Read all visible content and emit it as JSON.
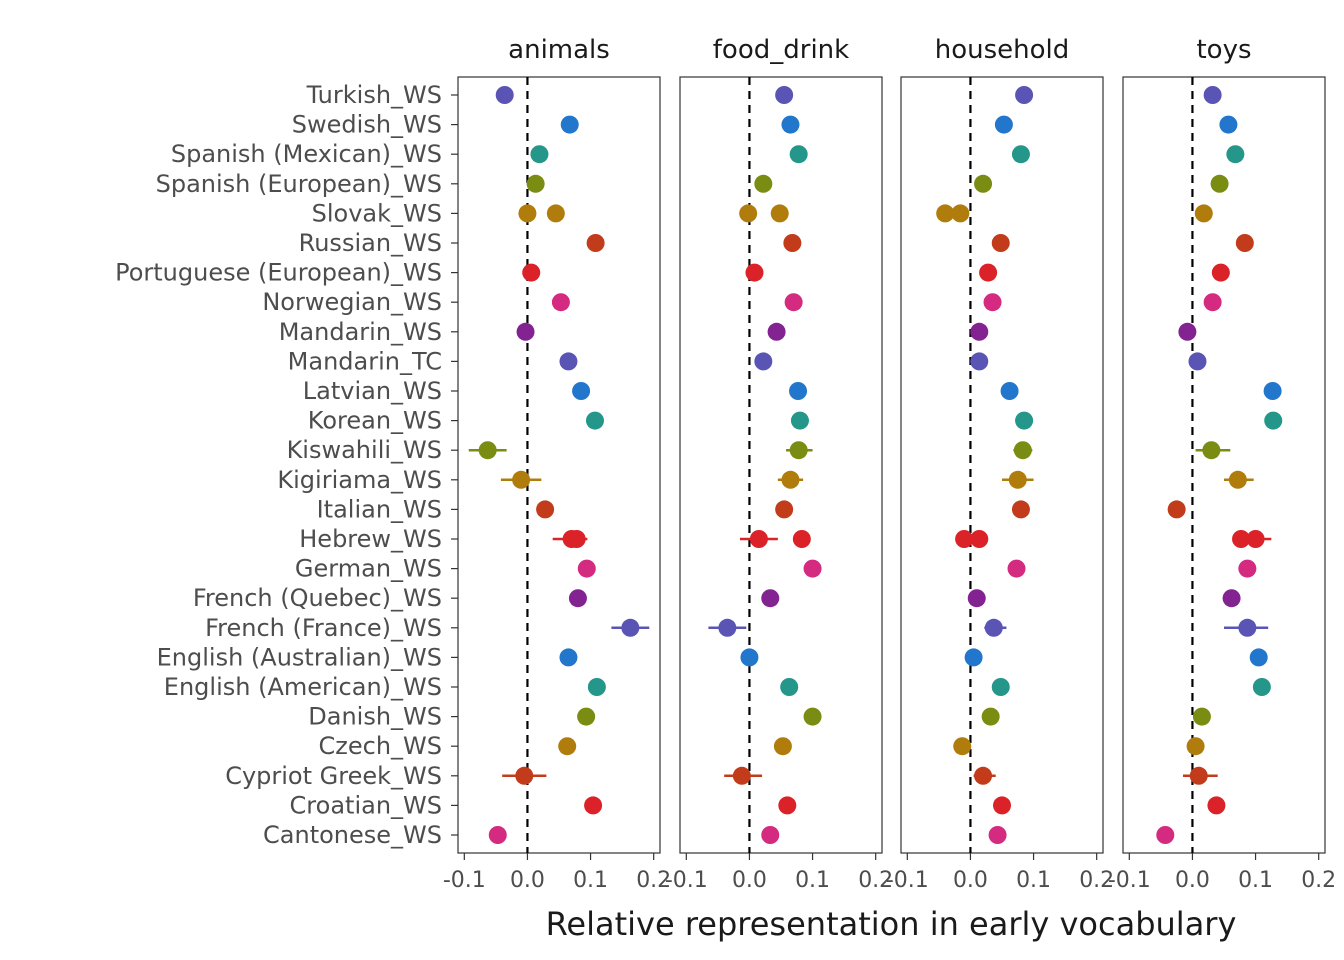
{
  "chart_data": {
    "type": "scatter",
    "xlabel": "Relative representation in early vocabulary",
    "ylabel": "",
    "xlim": [
      -0.11,
      0.21
    ],
    "xticks": [
      -0.1,
      0.0,
      0.1,
      0.2
    ],
    "xtick_labels": [
      "-0.1",
      "0.0",
      "0.1",
      "0.2"
    ],
    "grid": false,
    "legend": "none",
    "panels": [
      "animals",
      "food_drink",
      "household",
      "toys"
    ],
    "languages": [
      "Turkish_WS",
      "Swedish_WS",
      "Spanish (Mexican)_WS",
      "Spanish (European)_WS",
      "Slovak_WS",
      "Russian_WS",
      "Portuguese (European)_WS",
      "Norwegian_WS",
      "Mandarin_WS",
      "Mandarin_TC",
      "Latvian_WS",
      "Korean_WS",
      "Kiswahili_WS",
      "Kigiriama_WS",
      "Italian_WS",
      "Hebrew_WS",
      "German_WS",
      "French (Quebec)_WS",
      "French (France)_WS",
      "English (Australian)_WS",
      "English (American)_WS",
      "Danish_WS",
      "Czech_WS",
      "Cypriot Greek_WS",
      "Croatian_WS",
      "Cantonese_WS"
    ],
    "colors": [
      "#5a55b5",
      "#2277cc",
      "#24968a",
      "#7a8c12",
      "#b07d0c",
      "#c23c1c",
      "#db2228",
      "#d42a80",
      "#832391",
      "#5a55b5",
      "#2277cc",
      "#24968a",
      "#7a8c12",
      "#b07d0c",
      "#c23c1c",
      "#db2228",
      "#d42a80",
      "#832391",
      "#5a55b5",
      "#2277cc",
      "#24968a",
      "#7a8c12",
      "#b07d0c",
      "#c23c1c",
      "#db2228",
      "#d42a80"
    ],
    "series": [
      {
        "panel": "animals",
        "points": [
          [
            {
              "x": -0.036
            }
          ],
          [
            {
              "x": 0.067
            }
          ],
          [
            {
              "x": 0.019
            }
          ],
          [
            {
              "x": 0.013
            }
          ],
          [
            {
              "x": 0.0
            },
            {
              "x": 0.045
            }
          ],
          [
            {
              "x": 0.108
            }
          ],
          [
            {
              "x": 0.006
            }
          ],
          [
            {
              "x": 0.053
            }
          ],
          [
            {
              "x": -0.003
            }
          ],
          [
            {
              "x": 0.065
            }
          ],
          [
            {
              "x": 0.085
            }
          ],
          [
            {
              "x": 0.107
            }
          ],
          [
            {
              "x": -0.063,
              "lo": -0.093,
              "hi": -0.033
            }
          ],
          [
            {
              "x": -0.01,
              "lo": -0.042,
              "hi": 0.022
            }
          ],
          [
            {
              "x": 0.028
            }
          ],
          [
            {
              "x": 0.07,
              "lo": 0.04,
              "hi": 0.095
            },
            {
              "x": 0.078
            }
          ],
          [
            {
              "x": 0.094
            }
          ],
          [
            {
              "x": 0.08
            }
          ],
          [
            {
              "x": 0.163,
              "lo": 0.133,
              "hi": 0.193
            }
          ],
          [
            {
              "x": 0.065
            }
          ],
          [
            {
              "x": 0.11
            }
          ],
          [
            {
              "x": 0.093
            }
          ],
          [
            {
              "x": 0.063
            }
          ],
          [
            {
              "x": -0.005,
              "lo": -0.04,
              "hi": 0.03
            }
          ],
          [
            {
              "x": 0.104
            }
          ],
          [
            {
              "x": -0.047
            }
          ]
        ]
      },
      {
        "panel": "food_drink",
        "points": [
          [
            {
              "x": 0.055
            }
          ],
          [
            {
              "x": 0.065
            }
          ],
          [
            {
              "x": 0.078
            }
          ],
          [
            {
              "x": 0.022
            }
          ],
          [
            {
              "x": -0.002
            },
            {
              "x": 0.048
            }
          ],
          [
            {
              "x": 0.068
            }
          ],
          [
            {
              "x": 0.008
            }
          ],
          [
            {
              "x": 0.07
            }
          ],
          [
            {
              "x": 0.043
            }
          ],
          [
            {
              "x": 0.022
            }
          ],
          [
            {
              "x": 0.077
            }
          ],
          [
            {
              "x": 0.08
            }
          ],
          [
            {
              "x": 0.078,
              "lo": 0.058,
              "hi": 0.1
            }
          ],
          [
            {
              "x": 0.065,
              "lo": 0.045,
              "hi": 0.085
            }
          ],
          [
            {
              "x": 0.055
            }
          ],
          [
            {
              "x": 0.015,
              "lo": -0.015,
              "hi": 0.045
            },
            {
              "x": 0.083
            }
          ],
          [
            {
              "x": 0.1
            }
          ],
          [
            {
              "x": 0.033
            }
          ],
          [
            {
              "x": -0.035,
              "lo": -0.065,
              "hi": -0.005
            }
          ],
          [
            {
              "x": 0.0
            }
          ],
          [
            {
              "x": 0.063
            }
          ],
          [
            {
              "x": 0.1
            }
          ],
          [
            {
              "x": 0.053
            }
          ],
          [
            {
              "x": -0.012,
              "lo": -0.04,
              "hi": 0.02
            }
          ],
          [
            {
              "x": 0.06
            }
          ],
          [
            {
              "x": 0.033
            }
          ]
        ]
      },
      {
        "panel": "household",
        "points": [
          [
            {
              "x": 0.085
            }
          ],
          [
            {
              "x": 0.053
            }
          ],
          [
            {
              "x": 0.08
            }
          ],
          [
            {
              "x": 0.02
            }
          ],
          [
            {
              "x": -0.04
            },
            {
              "x": -0.016
            }
          ],
          [
            {
              "x": 0.048
            }
          ],
          [
            {
              "x": 0.028
            }
          ],
          [
            {
              "x": 0.035
            }
          ],
          [
            {
              "x": 0.014
            }
          ],
          [
            {
              "x": 0.014
            }
          ],
          [
            {
              "x": 0.062
            }
          ],
          [
            {
              "x": 0.085
            }
          ],
          [
            {
              "x": 0.083,
              "lo": 0.068,
              "hi": 0.098
            }
          ],
          [
            {
              "x": 0.075,
              "lo": 0.05,
              "hi": 0.1
            }
          ],
          [
            {
              "x": 0.08
            }
          ],
          [
            {
              "x": -0.01
            },
            {
              "x": 0.014
            }
          ],
          [
            {
              "x": 0.073
            }
          ],
          [
            {
              "x": 0.01
            }
          ],
          [
            {
              "x": 0.037,
              "lo": 0.022,
              "hi": 0.057
            }
          ],
          [
            {
              "x": 0.005
            }
          ],
          [
            {
              "x": 0.048
            }
          ],
          [
            {
              "x": 0.032
            }
          ],
          [
            {
              "x": -0.013
            }
          ],
          [
            {
              "x": 0.02,
              "lo": 0.005,
              "hi": 0.04
            }
          ],
          [
            {
              "x": 0.05
            }
          ],
          [
            {
              "x": 0.043
            }
          ]
        ]
      },
      {
        "panel": "toys",
        "points": [
          [
            {
              "x": 0.032
            }
          ],
          [
            {
              "x": 0.057
            }
          ],
          [
            {
              "x": 0.068
            }
          ],
          [
            {
              "x": 0.043
            }
          ],
          [
            {
              "x": 0.018
            }
          ],
          [
            {
              "x": 0.083
            }
          ],
          [
            {
              "x": 0.045
            }
          ],
          [
            {
              "x": 0.032
            }
          ],
          [
            {
              "x": -0.008
            }
          ],
          [
            {
              "x": 0.008
            }
          ],
          [
            {
              "x": 0.127
            }
          ],
          [
            {
              "x": 0.128
            }
          ],
          [
            {
              "x": 0.03,
              "lo": 0.005,
              "hi": 0.06
            }
          ],
          [
            {
              "x": 0.072,
              "lo": 0.05,
              "hi": 0.097
            }
          ],
          [
            {
              "x": -0.025
            }
          ],
          [
            {
              "x": 0.077
            },
            {
              "x": 0.1,
              "lo": 0.075,
              "hi": 0.125
            }
          ],
          [
            {
              "x": 0.087
            }
          ],
          [
            {
              "x": 0.062
            }
          ],
          [
            {
              "x": 0.087,
              "lo": 0.05,
              "hi": 0.12
            }
          ],
          [
            {
              "x": 0.105
            }
          ],
          [
            {
              "x": 0.11
            }
          ],
          [
            {
              "x": 0.015
            }
          ],
          [
            {
              "x": 0.005
            }
          ],
          [
            {
              "x": 0.01,
              "lo": -0.015,
              "hi": 0.04
            }
          ],
          [
            {
              "x": 0.038
            }
          ],
          [
            {
              "x": -0.043
            }
          ]
        ]
      }
    ]
  }
}
